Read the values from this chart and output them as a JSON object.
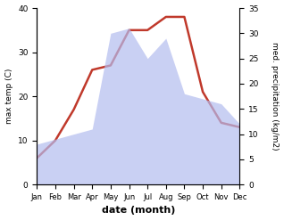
{
  "months": [
    "Jan",
    "Feb",
    "Mar",
    "Apr",
    "May",
    "Jun",
    "Jul",
    "Aug",
    "Sep",
    "Oct",
    "Nov",
    "Dec"
  ],
  "temp": [
    6,
    10,
    17,
    26,
    27,
    35,
    35,
    38,
    38,
    21,
    14,
    13
  ],
  "precip": [
    8,
    9,
    10,
    11,
    30,
    31,
    25,
    29,
    18,
    17,
    16,
    12
  ],
  "temp_color": "#c0392b",
  "precip_fill_color": "#b3bcef",
  "ylabel_left": "max temp (C)",
  "ylabel_right": "med. precipitation (kg/m2)",
  "xlabel": "date (month)",
  "ylim_left": [
    0,
    40
  ],
  "ylim_right": [
    0,
    35
  ],
  "yticks_left": [
    0,
    10,
    20,
    30,
    40
  ],
  "yticks_right": [
    0,
    5,
    10,
    15,
    20,
    25,
    30,
    35
  ],
  "bg_color": "#ffffff"
}
